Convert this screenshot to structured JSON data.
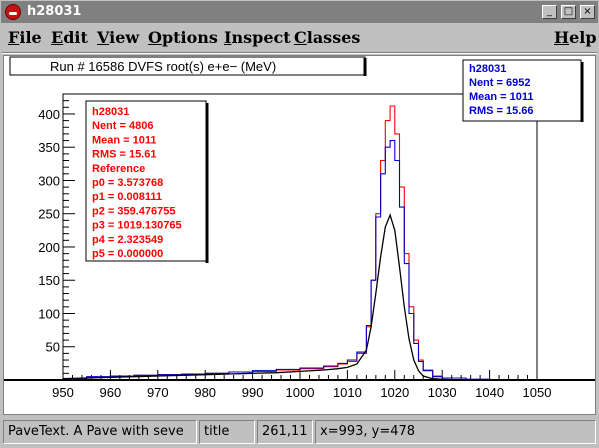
{
  "window": {
    "title": "h28031"
  },
  "menu": {
    "file": "File",
    "edit": "Edit",
    "view": "View",
    "options": "Options",
    "inspect": "Inspect",
    "classes": "Classes",
    "help": "Help"
  },
  "window_buttons": {
    "minimize": "_",
    "maximize": "□",
    "close": "×"
  },
  "canvas": {
    "title": "Run #   16586  DVFS root(s) e+e− (MeV)",
    "stats_red": [
      "h28031",
      "Nent = 4806",
      "Mean  =   1011",
      "RMS   =  15.61",
      "Reference",
      "p0 = 3.573768",
      "p1 = 0.008111",
      "p2 = 359.476755",
      "p3 = 1019.130765",
      "p4 = 2.323549",
      "p5 = 0.000000"
    ],
    "stats_blue": [
      "h28031",
      "Nent = 6952",
      "Mean  =    1011",
      "RMS   =  15.66"
    ]
  },
  "status": {
    "object": "PaveText. A Pave with seve",
    "title": "title",
    "pixel": "261,11",
    "coords": "x=993, y=478"
  },
  "colors": {
    "red": "#ff0000",
    "blue": "#0000cc",
    "fit": "#000000"
  },
  "chart_data": {
    "type": "line",
    "xlim": [
      950,
      1050
    ],
    "ylim": [
      0,
      430
    ],
    "x_ticks": [
      950,
      960,
      970,
      980,
      990,
      1000,
      1010,
      1020,
      1030,
      1040,
      1050
    ],
    "y_ticks": [
      50,
      100,
      150,
      200,
      250,
      300,
      350,
      400
    ],
    "x": [
      950,
      955,
      960,
      965,
      970,
      975,
      980,
      985,
      990,
      995,
      1000,
      1005,
      1008,
      1010,
      1012,
      1014,
      1015,
      1016,
      1017,
      1018,
      1019,
      1020,
      1021,
      1022,
      1023,
      1024,
      1025,
      1026,
      1028,
      1030,
      1035,
      1040,
      1050
    ],
    "series": [
      {
        "name": "",
        "color": "red",
        "values": [
          2,
          4,
          6,
          7,
          8,
          9,
          10,
          12,
          13,
          15,
          17,
          20,
          24,
          28,
          40,
          80,
          150,
          250,
          330,
          390,
          412,
          370,
          290,
          190,
          110,
          60,
          30,
          15,
          6,
          3,
          1,
          0,
          0
        ]
      },
      {
        "name": "",
        "color": "blue",
        "values": [
          2,
          5,
          6,
          7,
          8,
          9,
          10,
          12,
          14,
          16,
          18,
          21,
          25,
          30,
          42,
          82,
          150,
          245,
          310,
          350,
          360,
          330,
          260,
          175,
          100,
          55,
          28,
          14,
          5,
          3,
          1,
          0,
          0
        ]
      },
      {
        "name": "",
        "color": "fit",
        "values": [
          2,
          3,
          4,
          5,
          6,
          7,
          8,
          9,
          10,
          11,
          13,
          15,
          17,
          19,
          24,
          45,
          80,
          130,
          185,
          230,
          248,
          225,
          170,
          110,
          62,
          30,
          14,
          6,
          2,
          1,
          0,
          0,
          0
        ]
      }
    ]
  }
}
